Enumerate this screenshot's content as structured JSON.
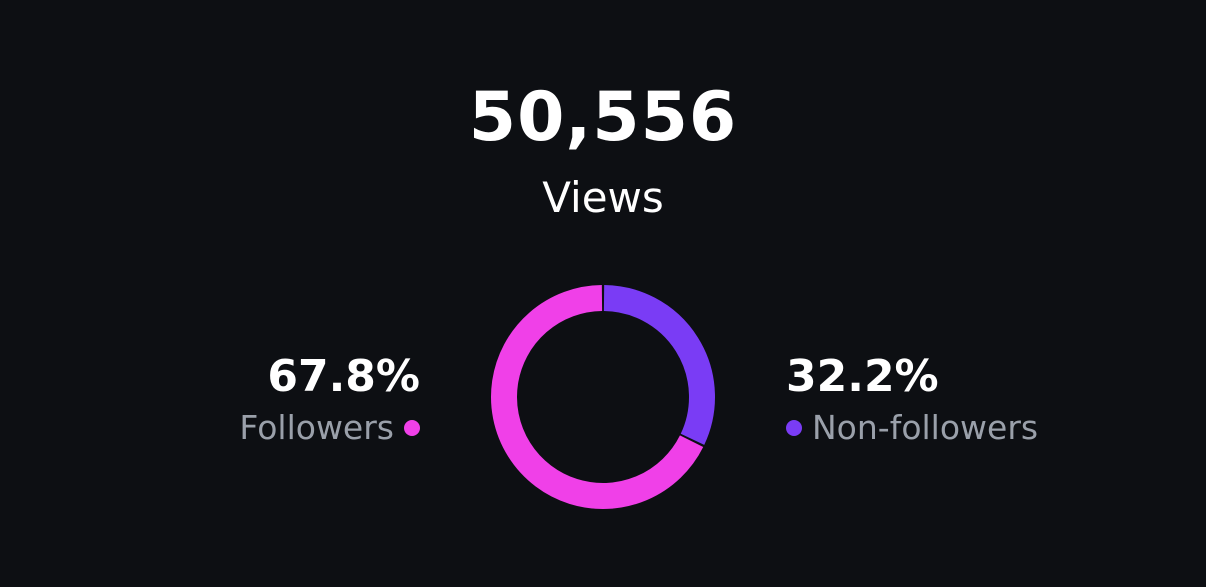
{
  "summary": {
    "total": "50,556",
    "label": "Views"
  },
  "segments": [
    {
      "label": "Followers",
      "percent_text": "67.8%",
      "color": "#f040e8"
    },
    {
      "label": "Non-followers",
      "percent_text": "32.2%",
      "color": "#7a3cf5"
    }
  ],
  "chart_data": {
    "type": "pie",
    "variant": "donut",
    "title": "",
    "categories": [
      "Followers",
      "Non-followers"
    ],
    "values": [
      67.8,
      32.2
    ],
    "unit": "%",
    "center_text": [
      "50,556",
      "Views"
    ],
    "colors": [
      "#f040e8",
      "#7a3cf5"
    ],
    "legend": "beside-chart"
  }
}
